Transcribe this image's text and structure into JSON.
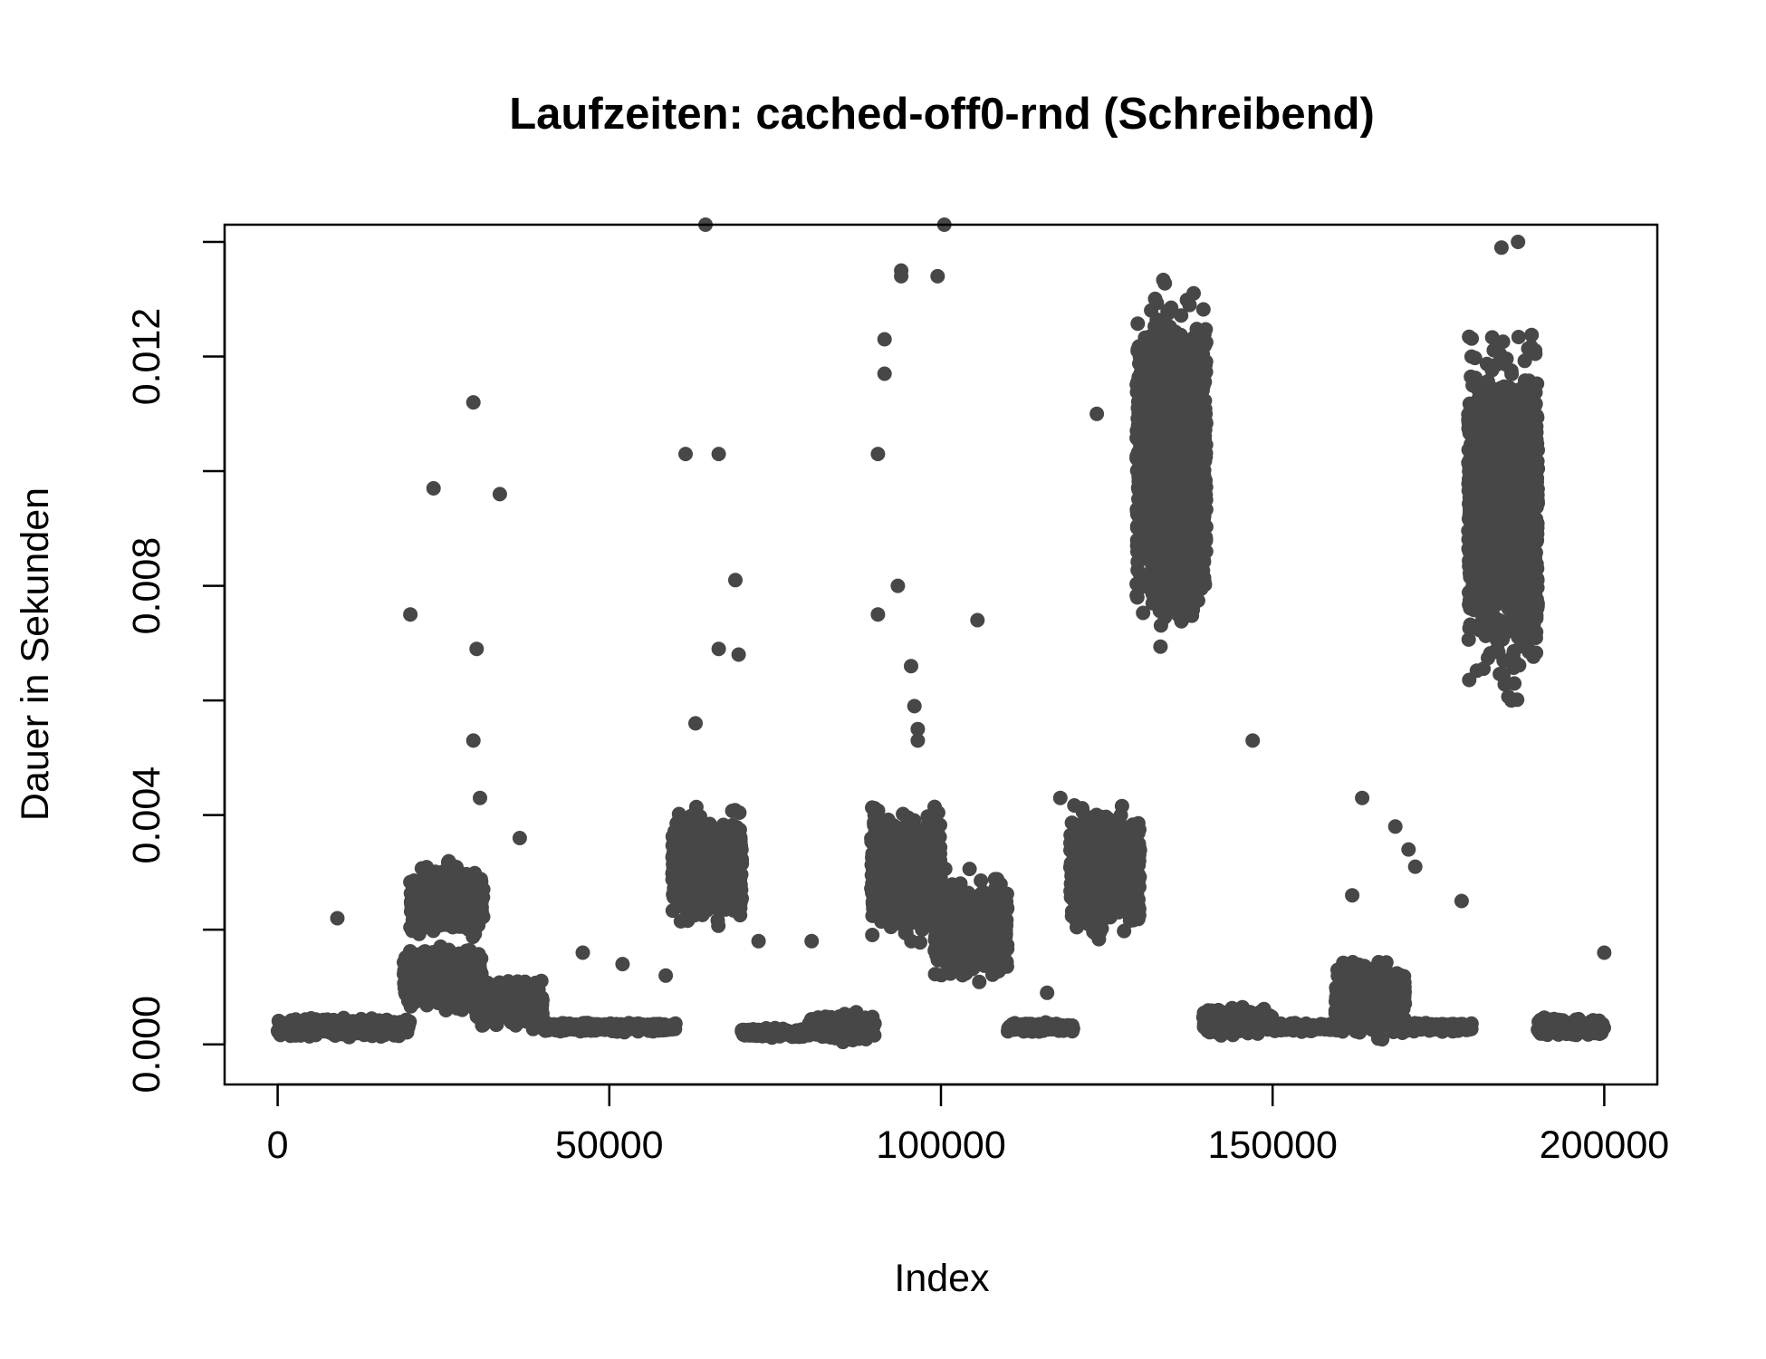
{
  "chart_data": {
    "type": "scatter",
    "title": "Laufzeiten: cached-off0-rnd (Schreibend)",
    "xlabel": "Index",
    "ylabel": "Dauer in Sekunden",
    "xlim": [
      -8000,
      208000
    ],
    "ylim": [
      -0.0007,
      0.0143
    ],
    "xticks": [
      0,
      50000,
      100000,
      150000,
      200000
    ],
    "xtick_labels": [
      "0",
      "50000",
      "100000",
      "150000",
      "200000"
    ],
    "yticks": [
      0,
      0.002,
      0.004,
      0.006,
      0.008,
      0.01,
      0.012,
      0.014
    ],
    "ytick_labels": [
      "0.000",
      "",
      "0.004",
      "",
      "0.008",
      "",
      "0.012",
      ""
    ],
    "grid": false,
    "legend": "none",
    "point_color": "#474747",
    "n_points": 200000,
    "clusters": [
      {
        "x_range": [
          0,
          20000
        ],
        "y_center": 0.0003,
        "y_spread": 0.0002
      },
      {
        "x_range": [
          19000,
          31000
        ],
        "y_center": 0.0011,
        "y_spread": 0.0007
      },
      {
        "x_range": [
          20000,
          31000
        ],
        "y_center": 0.0025,
        "y_spread": 0.0008
      },
      {
        "x_range": [
          30000,
          40000
        ],
        "y_center": 0.0007,
        "y_spread": 0.0005
      },
      {
        "x_range": [
          40000,
          60000
        ],
        "y_center": 0.0003,
        "y_spread": 0.0001
      },
      {
        "x_range": [
          59500,
          70000
        ],
        "y_center": 0.0031,
        "y_spread": 0.0012
      },
      {
        "x_range": [
          70000,
          80000
        ],
        "y_center": 0.0002,
        "y_spread": 0.0001
      },
      {
        "x_range": [
          80000,
          90000
        ],
        "y_center": 0.0003,
        "y_spread": 0.0003
      },
      {
        "x_range": [
          89500,
          100000
        ],
        "y_center": 0.003,
        "y_spread": 0.0013
      },
      {
        "x_range": [
          99000,
          110000
        ],
        "y_center": 0.002,
        "y_spread": 0.0011
      },
      {
        "x_range": [
          110000,
          120000
        ],
        "y_center": 0.0003,
        "y_spread": 0.0001
      },
      {
        "x_range": [
          119500,
          130000
        ],
        "y_center": 0.003,
        "y_spread": 0.0013
      },
      {
        "x_range": [
          129500,
          140000
        ],
        "y_center": 0.0102,
        "y_spread": 0.0035
      },
      {
        "x_range": [
          139500,
          150000
        ],
        "y_center": 0.0004,
        "y_spread": 0.0003
      },
      {
        "x_range": [
          150000,
          160000
        ],
        "y_center": 0.0003,
        "y_spread": 0.0001
      },
      {
        "x_range": [
          159500,
          170000
        ],
        "y_center": 0.0008,
        "y_spread": 0.0008
      },
      {
        "x_range": [
          170000,
          180000
        ],
        "y_center": 0.0003,
        "y_spread": 0.0001
      },
      {
        "x_range": [
          179500,
          190000
        ],
        "y_center": 0.0093,
        "y_spread": 0.0035
      },
      {
        "x_range": [
          190000,
          200000
        ],
        "y_center": 0.0003,
        "y_spread": 0.0002
      }
    ],
    "outliers": [
      [
        9000,
        0.0022
      ],
      [
        20000,
        0.0075
      ],
      [
        23500,
        0.0097
      ],
      [
        29500,
        0.0112
      ],
      [
        30000,
        0.0069
      ],
      [
        29500,
        0.0053
      ],
      [
        30500,
        0.0043
      ],
      [
        33500,
        0.0096
      ],
      [
        36500,
        0.0036
      ],
      [
        46000,
        0.0016
      ],
      [
        52000,
        0.0014
      ],
      [
        58500,
        0.0012
      ],
      [
        61500,
        0.0103
      ],
      [
        63000,
        0.0056
      ],
      [
        64500,
        0.0143
      ],
      [
        66500,
        0.0103
      ],
      [
        66500,
        0.0069
      ],
      [
        69000,
        0.0081
      ],
      [
        69500,
        0.0068
      ],
      [
        72500,
        0.0018
      ],
      [
        80500,
        0.0018
      ],
      [
        90500,
        0.0103
      ],
      [
        90500,
        0.0075
      ],
      [
        91500,
        0.0123
      ],
      [
        91500,
        0.0117
      ],
      [
        93500,
        0.008
      ],
      [
        94000,
        0.0134
      ],
      [
        94000,
        0.0135
      ],
      [
        95500,
        0.0066
      ],
      [
        96000,
        0.0059
      ],
      [
        96500,
        0.0055
      ],
      [
        96500,
        0.0053
      ],
      [
        99500,
        0.0134
      ],
      [
        100500,
        0.0143
      ],
      [
        105500,
        0.0074
      ],
      [
        116000,
        0.0009
      ],
      [
        118000,
        0.0043
      ],
      [
        123500,
        0.011
      ],
      [
        147000,
        0.0053
      ],
      [
        162000,
        0.0026
      ],
      [
        163500,
        0.0043
      ],
      [
        168500,
        0.0038
      ],
      [
        170500,
        0.0034
      ],
      [
        171500,
        0.0031
      ],
      [
        178500,
        0.0025
      ],
      [
        200000,
        0.0016
      ],
      [
        184500,
        0.0139
      ],
      [
        187000,
        0.014
      ],
      [
        186000,
        0.006
      ]
    ]
  }
}
